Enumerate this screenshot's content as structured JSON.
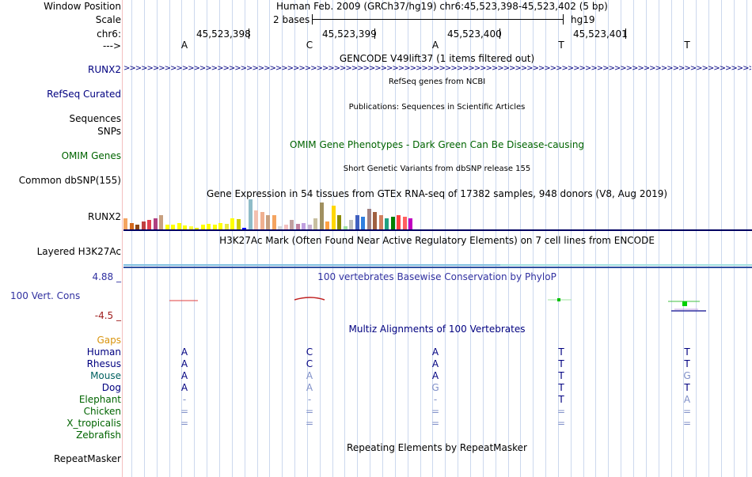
{
  "header": {
    "labels": [
      "Window Position",
      "Scale",
      "chr6:",
      "--->"
    ],
    "window_position": "Human Feb. 2009 (GRCh37/hg19)   chr6:45,523,398-45,523,402 (5 bp)",
    "scale_text": "2 bases",
    "assembly": "hg19",
    "coords": [
      "45,523,398",
      "45,523,399",
      "45,523,400",
      "45,523,401"
    ],
    "bases": [
      "A",
      "C",
      "A",
      "T",
      "T"
    ]
  },
  "tracks": {
    "gencode_title": "GENCODE V49lift37 (1 items filtered out)",
    "gencode_label": "RUNX2",
    "refseq_title": "RefSeq genes from NCBI",
    "refseq_label": "RefSeq Curated",
    "pubs_title": "Publications: Sequences in Scientific Articles",
    "pubs_label": "Sequences",
    "snps_label": "SNPs",
    "omim_title": "OMIM Gene Phenotypes - Dark Green Can Be Disease-causing",
    "omim_label": "OMIM Genes",
    "dbsnp_title": "Short Genetic Variants from dbSNP release 155",
    "dbsnp_label": "Common dbSNP(155)",
    "gtex_title": "Gene Expression in 54 tissues from GTEx RNA-seq of 17382 samples, 948 donors (V8, Aug 2019)",
    "gtex_label": "RUNX2",
    "h3k27_title": "H3K27Ac Mark (Often Found Near Active Regulatory Elements) on 7 cell lines from ENCODE",
    "h3k27_label": "Layered H3K27Ac",
    "cons_title": "100 vertebrates Basewise Conservation by PhyloP",
    "cons_label": "100 Vert. Cons",
    "cons_max": "4.88 _",
    "cons_min": "-4.5 _",
    "multiz_title": "Multiz Alignments of 100 Vertebrates",
    "rmsk_title": "Repeating Elements by RepeatMasker",
    "rmsk_label": "RepeatMasker"
  },
  "alignment": {
    "gaps_label": "Gaps",
    "species": [
      {
        "name": "Human",
        "bases": [
          "A",
          "C",
          "A",
          "T",
          "T"
        ]
      },
      {
        "name": "Rhesus",
        "bases": [
          "A",
          "C",
          "A",
          "T",
          "T"
        ]
      },
      {
        "name": "Mouse",
        "bases": [
          "A",
          "A",
          "A",
          "T",
          "G"
        ]
      },
      {
        "name": "Dog",
        "bases": [
          "A",
          "A",
          "G",
          "T",
          "T"
        ]
      },
      {
        "name": "Elephant",
        "bases": [
          "-",
          "-",
          "-",
          "T",
          "A"
        ]
      },
      {
        "name": "Chicken",
        "bases": [
          "=",
          "=",
          "=",
          "=",
          "="
        ]
      },
      {
        "name": "X_tropicalis",
        "bases": [
          "=",
          "=",
          "=",
          "=",
          "="
        ]
      },
      {
        "name": "Zebrafish",
        "bases": [
          "",
          "",
          "",
          "",
          ""
        ]
      }
    ]
  },
  "gtex_values": [
    14,
    8,
    6,
    10,
    12,
    14,
    18,
    6,
    6,
    8,
    5,
    4,
    2,
    6,
    7,
    6,
    8,
    7,
    14,
    13,
    2,
    38,
    24,
    22,
    18,
    18,
    4,
    6,
    12,
    7,
    8,
    6,
    14,
    34,
    10,
    30,
    18,
    4,
    12,
    18,
    16,
    26,
    22,
    18,
    14,
    16,
    18,
    16,
    14
  ],
  "gtex_colors": [
    "#f4a460",
    "#d2691e",
    "#8b4513",
    "#c04040",
    "#e04050",
    "#b04080",
    "#c8a080",
    "#ffff00",
    "#ffff00",
    "#ffff00",
    "#ffff00",
    "#ffff40",
    "#e8e800",
    "#ffff00",
    "#ffff00",
    "#ffff00",
    "#ffff00",
    "#e8e840",
    "#ffff00",
    "#cdcd00",
    "#0000ff",
    "#8fbcc8",
    "#f4c0b0",
    "#f0b090",
    "#c8a080",
    "#f4a460",
    "#d8d8d8",
    "#f4c0c0",
    "#c0a0a0",
    "#c080a0",
    "#c0a0e0",
    "#c8b0d0",
    "#c8c0a0",
    "#a09060",
    "#ffa040",
    "#ffd700",
    "#8b8b00",
    "#a0e0a0",
    "#c0c0c0",
    "#4060c0",
    "#3080e0",
    "#a08080",
    "#a06040",
    "#d08060",
    "#20a080",
    "#008000",
    "#ff4040",
    "#ff6060",
    "#c000c0"
  ],
  "colors": {
    "navy": "#000080",
    "omim_green": "#006400",
    "gaps_orange": "#d9940d",
    "light_base": "#8090c8"
  }
}
